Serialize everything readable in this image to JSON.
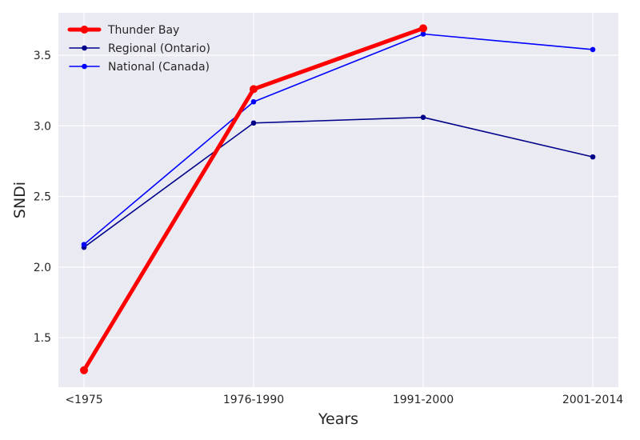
{
  "chart_data": {
    "type": "line",
    "title": "",
    "xlabel": "Years",
    "ylabel": "SNDi",
    "categories": [
      "<1975",
      "1976-1990",
      "1991-2000",
      "2001-2014"
    ],
    "yticks": [
      "1.5",
      "2.0",
      "2.5",
      "3.0",
      "3.5"
    ],
    "ylim": [
      1.15,
      3.8
    ],
    "grid": true,
    "legend_position": "top-left",
    "series": [
      {
        "name": "Thunder Bay",
        "color": "#ff0000",
        "values": [
          1.27,
          3.26,
          3.69,
          null
        ]
      },
      {
        "name": "Regional (Ontario)",
        "color": "#00008b",
        "values": [
          2.14,
          3.02,
          3.06,
          2.78
        ]
      },
      {
        "name": "National (Canada)",
        "color": "#0000ff",
        "values": [
          2.16,
          3.17,
          3.65,
          3.54
        ]
      }
    ]
  }
}
